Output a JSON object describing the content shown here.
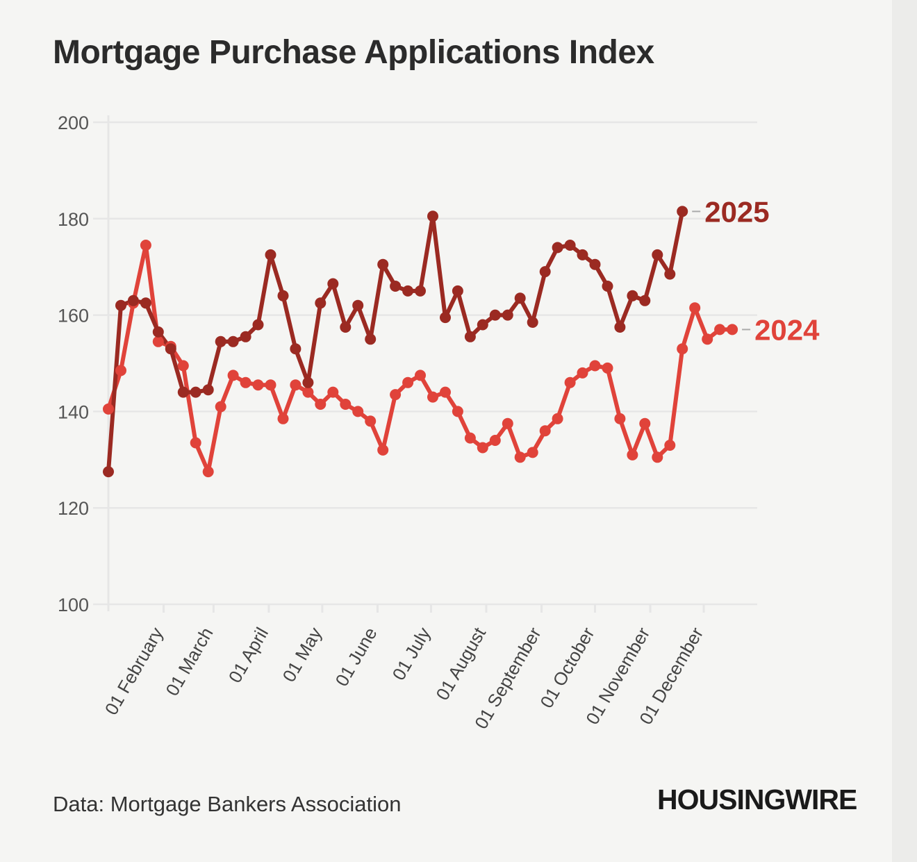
{
  "title": "Mortgage Purchase Applications Index",
  "source": "Data: Mortgage Bankers Association",
  "brand": "HOUSINGWIRE",
  "colors": {
    "s2025": "#9b2a22",
    "s2024": "#e0433a",
    "grid": "#e6e6e6",
    "connector": "#aaaaaa"
  },
  "chart_data": {
    "type": "line",
    "ylim": [
      100,
      200
    ],
    "yticks": [
      100,
      120,
      140,
      160,
      180,
      200
    ],
    "xlim": [
      "2025-01-01",
      "2025-12-31"
    ],
    "xticks": [
      {
        "date": "2025-02-01",
        "label": "01 February"
      },
      {
        "date": "2025-03-01",
        "label": "01 March"
      },
      {
        "date": "2025-04-01",
        "label": "01 April"
      },
      {
        "date": "2025-05-01",
        "label": "01 May"
      },
      {
        "date": "2025-06-01",
        "label": "01 June"
      },
      {
        "date": "2025-07-01",
        "label": "01 July"
      },
      {
        "date": "2025-08-01",
        "label": "01 August"
      },
      {
        "date": "2025-09-01",
        "label": "01 September"
      },
      {
        "date": "2025-10-01",
        "label": "01 October"
      },
      {
        "date": "2025-11-01",
        "label": "01 November"
      },
      {
        "date": "2025-12-01",
        "label": "01 December"
      }
    ],
    "series": [
      {
        "name": "2025",
        "color": "#9b2a22",
        "points": [
          [
            "2025-01-01",
            127.5
          ],
          [
            "2025-01-08",
            162
          ],
          [
            "2025-01-15",
            163
          ],
          [
            "2025-01-22",
            162.5
          ],
          [
            "2025-01-29",
            156.5
          ],
          [
            "2025-02-05",
            153
          ],
          [
            "2025-02-12",
            144
          ],
          [
            "2025-02-19",
            144
          ],
          [
            "2025-02-26",
            144.5
          ],
          [
            "2025-03-05",
            154.5
          ],
          [
            "2025-03-12",
            154.5
          ],
          [
            "2025-03-19",
            155.5
          ],
          [
            "2025-03-26",
            158
          ],
          [
            "2025-04-02",
            172.5
          ],
          [
            "2025-04-09",
            164
          ],
          [
            "2025-04-16",
            153
          ],
          [
            "2025-04-23",
            146
          ],
          [
            "2025-04-30",
            162.5
          ],
          [
            "2025-05-07",
            166.5
          ],
          [
            "2025-05-14",
            157.5
          ],
          [
            "2025-05-21",
            162
          ],
          [
            "2025-05-28",
            155
          ],
          [
            "2025-06-04",
            170.5
          ],
          [
            "2025-06-11",
            166
          ],
          [
            "2025-06-18",
            165
          ],
          [
            "2025-06-25",
            165
          ],
          [
            "2025-07-02",
            180.5
          ],
          [
            "2025-07-09",
            159.5
          ],
          [
            "2025-07-16",
            165
          ],
          [
            "2025-07-23",
            155.5
          ],
          [
            "2025-07-30",
            158
          ],
          [
            "2025-08-06",
            160
          ],
          [
            "2025-08-13",
            160
          ],
          [
            "2025-08-20",
            163.5
          ],
          [
            "2025-08-27",
            158.5
          ],
          [
            "2025-09-03",
            169
          ],
          [
            "2025-09-10",
            174
          ],
          [
            "2025-09-17",
            174.5
          ],
          [
            "2025-09-24",
            172.5
          ],
          [
            "2025-10-01",
            170.5
          ],
          [
            "2025-10-08",
            166
          ],
          [
            "2025-10-15",
            157.5
          ],
          [
            "2025-10-22",
            164
          ],
          [
            "2025-10-29",
            163
          ],
          [
            "2025-11-05",
            172.5
          ],
          [
            "2025-11-12",
            168.5
          ],
          [
            "2025-11-19",
            181.5
          ]
        ]
      },
      {
        "name": "2024",
        "color": "#e0433a",
        "points": [
          [
            "2025-01-01",
            140.5
          ],
          [
            "2025-01-08",
            148.5
          ],
          [
            "2025-01-15",
            162.5
          ],
          [
            "2025-01-22",
            174.5
          ],
          [
            "2025-01-29",
            154.5
          ],
          [
            "2025-02-05",
            153.5
          ],
          [
            "2025-02-12",
            149.5
          ],
          [
            "2025-02-19",
            133.5
          ],
          [
            "2025-02-26",
            127.5
          ],
          [
            "2025-03-05",
            141
          ],
          [
            "2025-03-12",
            147.5
          ],
          [
            "2025-03-19",
            146
          ],
          [
            "2025-03-26",
            145.5
          ],
          [
            "2025-04-02",
            145.5
          ],
          [
            "2025-04-09",
            138.5
          ],
          [
            "2025-04-16",
            145.5
          ],
          [
            "2025-04-23",
            144
          ],
          [
            "2025-04-30",
            141.5
          ],
          [
            "2025-05-07",
            144
          ],
          [
            "2025-05-14",
            141.5
          ],
          [
            "2025-05-21",
            140
          ],
          [
            "2025-05-28",
            138
          ],
          [
            "2025-06-04",
            132
          ],
          [
            "2025-06-11",
            143.5
          ],
          [
            "2025-06-18",
            146
          ],
          [
            "2025-06-25",
            147.5
          ],
          [
            "2025-07-02",
            143
          ],
          [
            "2025-07-09",
            144
          ],
          [
            "2025-07-16",
            140
          ],
          [
            "2025-07-23",
            134.5
          ],
          [
            "2025-07-30",
            132.5
          ],
          [
            "2025-08-06",
            134
          ],
          [
            "2025-08-13",
            137.5
          ],
          [
            "2025-08-20",
            130.5
          ],
          [
            "2025-08-27",
            131.5
          ],
          [
            "2025-09-03",
            136
          ],
          [
            "2025-09-10",
            138.5
          ],
          [
            "2025-09-17",
            146
          ],
          [
            "2025-09-24",
            148
          ],
          [
            "2025-10-01",
            149.5
          ],
          [
            "2025-10-08",
            149
          ],
          [
            "2025-10-15",
            138.5
          ],
          [
            "2025-10-22",
            131
          ],
          [
            "2025-10-29",
            137.5
          ],
          [
            "2025-11-05",
            130.5
          ],
          [
            "2025-11-12",
            133
          ],
          [
            "2025-11-19",
            153
          ],
          [
            "2025-11-26",
            161.5
          ],
          [
            "2025-12-03",
            155
          ],
          [
            "2025-12-10",
            157
          ],
          [
            "2025-12-17",
            157
          ]
        ]
      }
    ]
  }
}
